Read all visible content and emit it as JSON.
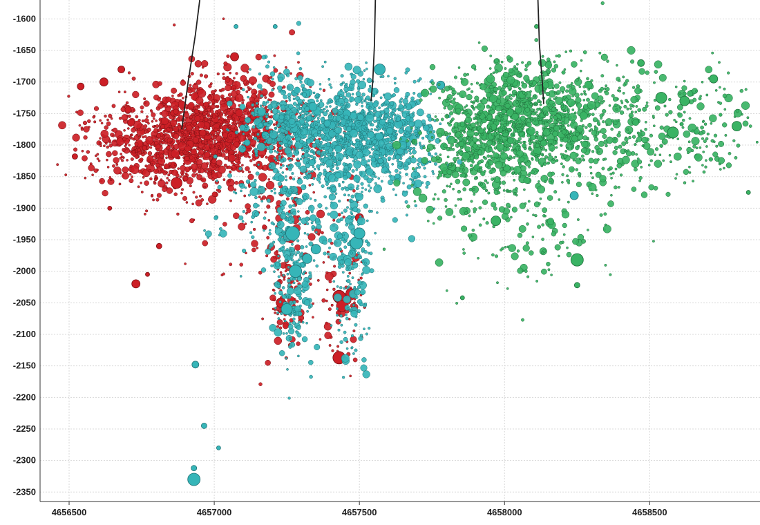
{
  "chart_data": {
    "type": "scatter",
    "title": "",
    "xlabel": "",
    "ylabel": "",
    "xlim": [
      4656400,
      4658880
    ],
    "ylim": [
      -2365,
      -1570
    ],
    "x_ticks": [
      4656500,
      4657000,
      4657500,
      4658000,
      4658500
    ],
    "x_tick_labels": [
      "4656500",
      "4657000",
      "4657500",
      "4658000",
      "4658500"
    ],
    "y_ticks": [
      -1600,
      -1650,
      -1700,
      -1750,
      -1800,
      -1850,
      -1900,
      -1950,
      -2000,
      -2050,
      -2100,
      -2150,
      -2200,
      -2250,
      -2300,
      -2350
    ],
    "y_tick_labels": [
      "-1600",
      "-1650",
      "-1700",
      "-1750",
      "-1800",
      "-1850",
      "-1900",
      "-1950",
      "-2000",
      "-2050",
      "-2100",
      "-2150",
      "-2200",
      "-2250",
      "-2300",
      "-2350"
    ],
    "grid": true,
    "legend": "none",
    "well_paths": [
      {
        "points": [
          [
            4656950,
            -1570
          ],
          [
            4656935,
            -1625
          ],
          [
            4656910,
            -1700
          ],
          [
            4656888,
            -1775
          ]
        ]
      },
      {
        "points": [
          [
            4657555,
            -1570
          ],
          [
            4657552,
            -1640
          ],
          [
            4657546,
            -1700
          ],
          [
            4657540,
            -1730
          ]
        ]
      },
      {
        "points": [
          [
            4658115,
            -1570
          ],
          [
            4658120,
            -1640
          ],
          [
            4658130,
            -1700
          ],
          [
            4658135,
            -1735
          ]
        ]
      }
    ],
    "series": [
      {
        "color": "#cc1f26",
        "stroke": "#7a1014",
        "clusters": [
          {
            "cx": 4656920,
            "cy": -1790,
            "sx": 130,
            "sy": 38,
            "n": 900
          },
          {
            "cx": 4657100,
            "cy": -1770,
            "sx": 120,
            "sy": 45,
            "n": 500
          },
          {
            "cx": 4656700,
            "cy": -1800,
            "sx": 100,
            "sy": 35,
            "n": 160
          },
          {
            "cx": 4657250,
            "cy": -2040,
            "sx": 40,
            "sy": 50,
            "n": 90
          },
          {
            "cx": 4657440,
            "cy": -2040,
            "sx": 40,
            "sy": 55,
            "n": 70
          },
          {
            "cx": 4657200,
            "cy": -1920,
            "sx": 130,
            "sy": 60,
            "n": 110
          }
        ],
        "points": [
          {
            "x": 4656520,
            "y": -1818,
            "size": 4
          },
          {
            "x": 4656540,
            "y": -1707,
            "size": 5
          },
          {
            "x": 4656620,
            "y": -1700,
            "size": 6
          },
          {
            "x": 4656680,
            "y": -1680,
            "size": 5
          },
          {
            "x": 4656730,
            "y": -2020,
            "size": 6
          },
          {
            "x": 4656770,
            "y": -2005,
            "size": 3
          },
          {
            "x": 4656810,
            "y": -1960,
            "size": 4
          },
          {
            "x": 4656870,
            "y": -1860,
            "size": 8
          },
          {
            "x": 4657070,
            "y": -1660,
            "size": 6
          },
          {
            "x": 4657430,
            "y": -2137,
            "size": 9
          },
          {
            "x": 4657430,
            "y": -2040,
            "size": 9
          },
          {
            "x": 4657440,
            "y": -2055,
            "size": 8
          },
          {
            "x": 4657230,
            "y": -2050,
            "size": 7
          },
          {
            "x": 4657470,
            "y": -2035,
            "size": 7
          },
          {
            "x": 4657500,
            "y": -1915,
            "size": 6
          },
          {
            "x": 4656640,
            "y": -1900,
            "size": 3
          }
        ]
      },
      {
        "color": "#36b5b8",
        "stroke": "#1f7073",
        "clusters": [
          {
            "cx": 4657450,
            "cy": -1780,
            "sx": 120,
            "sy": 40,
            "n": 900
          },
          {
            "cx": 4657640,
            "cy": -1790,
            "sx": 80,
            "sy": 40,
            "n": 300
          },
          {
            "cx": 4657230,
            "cy": -1760,
            "sx": 70,
            "sy": 40,
            "n": 220
          },
          {
            "cx": 4657270,
            "cy": -2010,
            "sx": 35,
            "sy": 65,
            "n": 200
          },
          {
            "cx": 4657480,
            "cy": -1990,
            "sx": 30,
            "sy": 75,
            "n": 180
          },
          {
            "cx": 4657300,
            "cy": -1890,
            "sx": 140,
            "sy": 50,
            "n": 200
          }
        ],
        "points": [
          {
            "x": 4656930,
            "y": -2330,
            "size": 9
          },
          {
            "x": 4656935,
            "y": -2148,
            "size": 5
          },
          {
            "x": 4656965,
            "y": -2245,
            "size": 4
          },
          {
            "x": 4656930,
            "y": -2312,
            "size": 4
          },
          {
            "x": 4657015,
            "y": -2280,
            "size": 3
          },
          {
            "x": 4657075,
            "y": -1612,
            "size": 3
          },
          {
            "x": 4657210,
            "y": -1612,
            "size": 3
          },
          {
            "x": 4657570,
            "y": -1680,
            "size": 8
          },
          {
            "x": 4657270,
            "y": -1940,
            "size": 10
          },
          {
            "x": 4657320,
            "y": -1980,
            "size": 7
          },
          {
            "x": 4657280,
            "y": -2000,
            "size": 9
          },
          {
            "x": 4657250,
            "y": -2060,
            "size": 8
          },
          {
            "x": 4657350,
            "y": -1965,
            "size": 7
          },
          {
            "x": 4657490,
            "y": -1955,
            "size": 9
          },
          {
            "x": 4657500,
            "y": -1940,
            "size": 8
          },
          {
            "x": 4657780,
            "y": -1705,
            "size": 6
          },
          {
            "x": 4658240,
            "y": -1880,
            "size": 6
          }
        ]
      },
      {
        "color": "#3ab364",
        "stroke": "#1d6e3a",
        "clusters": [
          {
            "cx": 4658070,
            "cy": -1765,
            "sx": 140,
            "sy": 45,
            "n": 1100
          },
          {
            "cx": 4657880,
            "cy": -1800,
            "sx": 90,
            "sy": 45,
            "n": 260
          },
          {
            "cx": 4658400,
            "cy": -1770,
            "sx": 120,
            "sy": 50,
            "n": 200
          },
          {
            "cx": 4658680,
            "cy": -1770,
            "sx": 90,
            "sy": 45,
            "n": 130
          },
          {
            "cx": 4658050,
            "cy": -1920,
            "sx": 180,
            "sy": 55,
            "n": 170
          }
        ],
        "points": [
          {
            "x": 4658250,
            "y": -1982,
            "size": 9
          },
          {
            "x": 4658250,
            "y": -2022,
            "size": 4
          },
          {
            "x": 4658540,
            "y": -1725,
            "size": 8
          },
          {
            "x": 4658720,
            "y": -1695,
            "size": 6
          },
          {
            "x": 4658800,
            "y": -1770,
            "size": 7
          },
          {
            "x": 4657855,
            "y": -2042,
            "size": 3
          },
          {
            "x": 4658470,
            "y": -1670,
            "size": 5
          },
          {
            "x": 4658620,
            "y": -1730,
            "size": 7
          },
          {
            "x": 4657970,
            "y": -1920,
            "size": 7
          },
          {
            "x": 4658580,
            "y": -1780,
            "size": 8
          },
          {
            "x": 4658110,
            "y": -1612,
            "size": 3
          },
          {
            "x": 4658840,
            "y": -1875,
            "size": 3
          }
        ]
      }
    ]
  }
}
